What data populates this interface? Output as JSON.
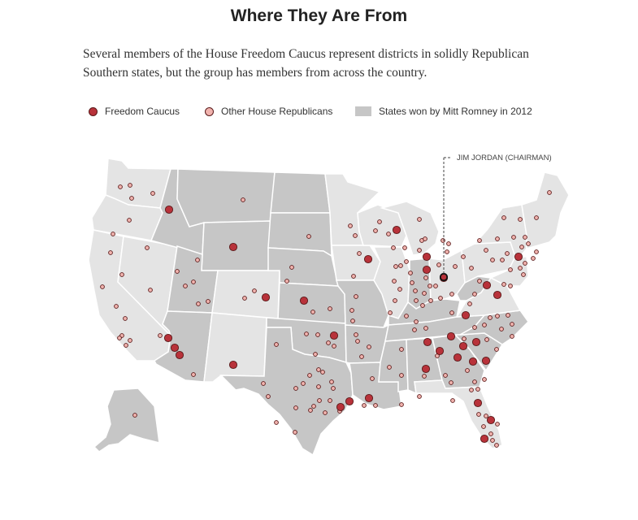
{
  "title": "Where They Are From",
  "subtitle": "Several members of the House Freedom Caucus represent districts in solidly Republican Southern states, but the group has members from across the country.",
  "legend": {
    "freedom_caucus": "Freedom Caucus",
    "other_republicans": "Other House Republicans",
    "romney_states": "States won by Mitt Romney in 2012"
  },
  "colors": {
    "freedom_caucus": "#b8323a",
    "other_republicans": "#f1b3ae",
    "romney_states": "#c6c6c6",
    "other_states": "#e4e4e4",
    "state_border": "#ffffff",
    "dot_stroke": "#5a1a1a"
  },
  "callout": {
    "label": "JIM JORDAN (CHAIRMAN)"
  }
}
